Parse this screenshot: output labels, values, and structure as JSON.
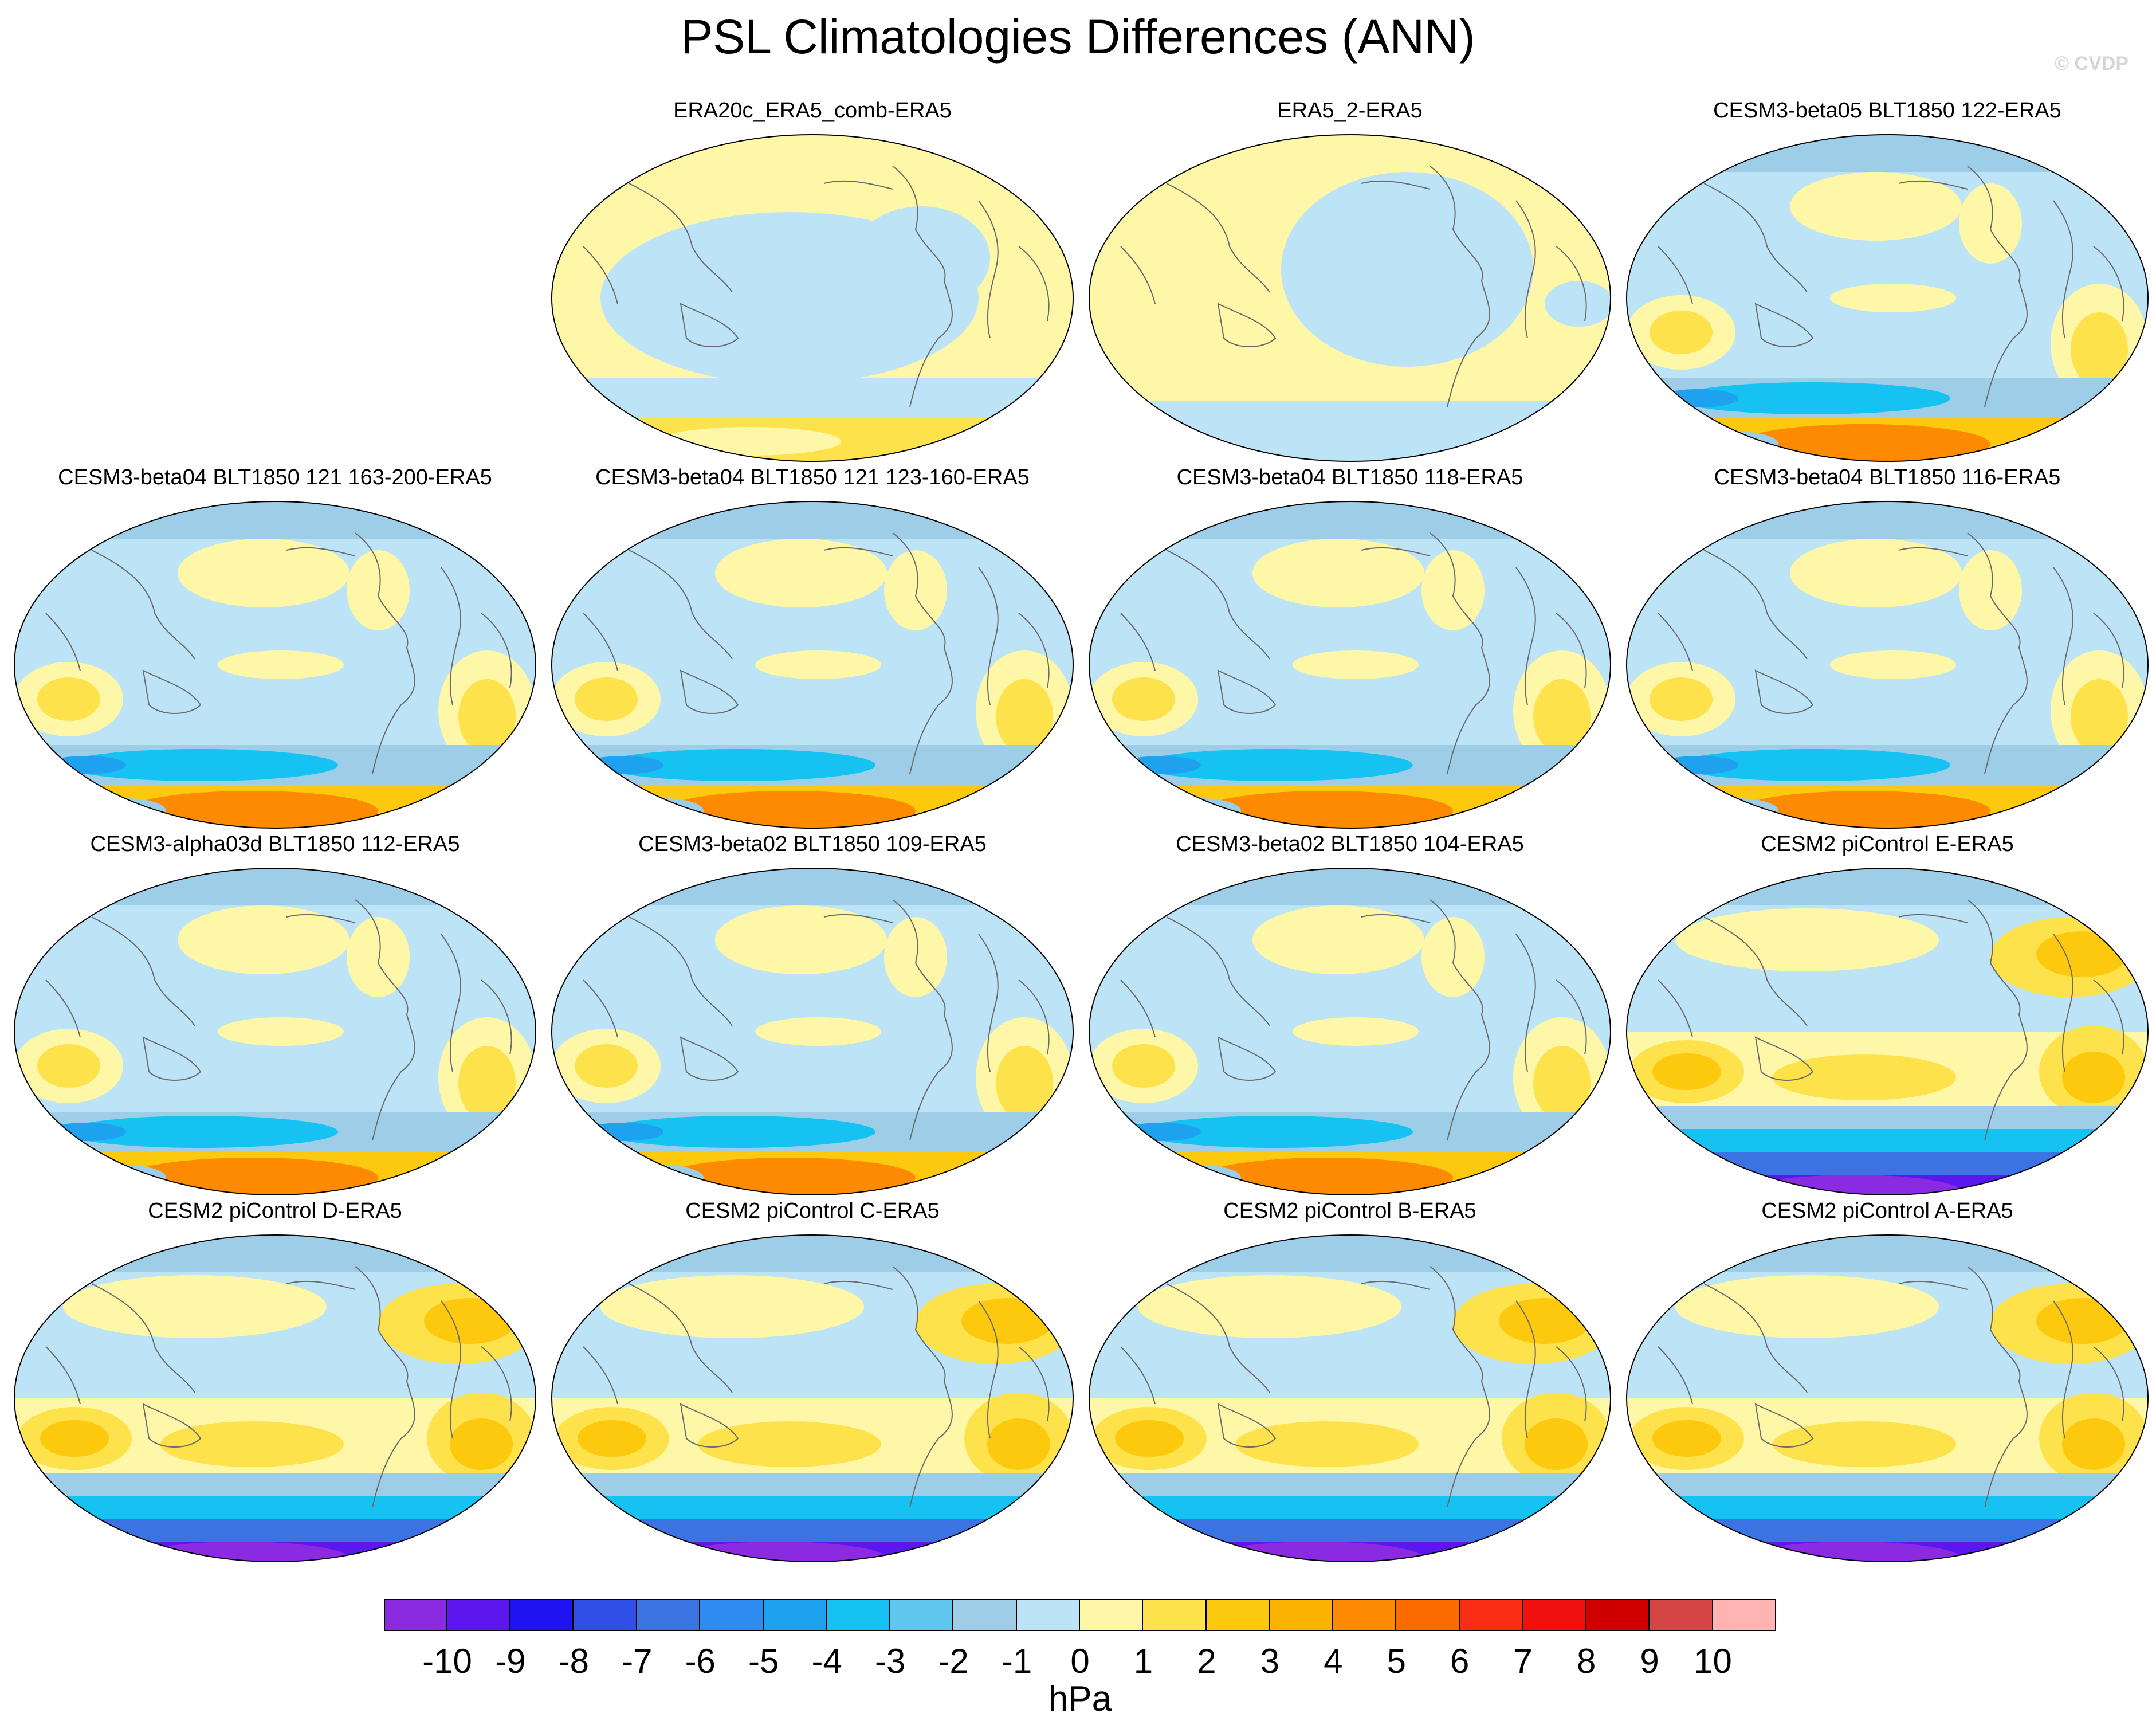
{
  "title": "PSL Climatologies Differences (ANN)",
  "watermark": "© CVDP",
  "units": "hPa",
  "colors": {
    "bins": [
      "#8a2be2",
      "#5c17ee",
      "#2013f2",
      "#2f4fe6",
      "#3b73e3",
      "#2e8cf0",
      "#1ea2f0",
      "#16c2f2",
      "#5fc6ee",
      "#9ecde8",
      "#bde3f6",
      "#fff7a8",
      "#fde24b",
      "#fcc90e",
      "#fbb200",
      "#fd8a00",
      "#fb6b00",
      "#f82d14",
      "#f01010",
      "#d00000",
      "#d54545",
      "#ffb4b4"
    ],
    "coast": "#6a6a6a"
  },
  "chart_data": {
    "type": "contour-map-panels",
    "title": "PSL Climatologies Differences (ANN)",
    "projection": "Robinson (Pacific-centered)",
    "colorbar": {
      "levels": [
        -10,
        -9,
        -8,
        -7,
        -6,
        -5,
        -4,
        -3,
        -2,
        -1,
        0,
        1,
        2,
        3,
        4,
        5,
        6,
        7,
        8,
        9,
        10
      ],
      "units": "hPa"
    },
    "panels": [
      {
        "title": "ERA20c_ERA5_comb-ERA5",
        "style": "era20c"
      },
      {
        "title": "ERA5_2-ERA5",
        "style": "era5"
      },
      {
        "title": "CESM3-beta05 BLT1850 122-ERA5",
        "style": "cesm3"
      },
      {
        "title": "CESM3-beta04 BLT1850 121 163-200-ERA5",
        "style": "cesm3"
      },
      {
        "title": "CESM3-beta04 BLT1850 121 123-160-ERA5",
        "style": "cesm3"
      },
      {
        "title": "CESM3-beta04 BLT1850 118-ERA5",
        "style": "cesm3"
      },
      {
        "title": "CESM3-beta04 BLT1850 116-ERA5",
        "style": "cesm3"
      },
      {
        "title": "CESM3-alpha03d BLT1850 112-ERA5",
        "style": "cesm3"
      },
      {
        "title": "CESM3-beta02 BLT1850 109-ERA5",
        "style": "cesm3"
      },
      {
        "title": "CESM3-beta02 BLT1850 104-ERA5",
        "style": "cesm3"
      },
      {
        "title": "CESM2 piControl E-ERA5",
        "style": "cesm2"
      },
      {
        "title": "CESM2 piControl D-ERA5",
        "style": "cesm2"
      },
      {
        "title": "CESM2 piControl C-ERA5",
        "style": "cesm2"
      },
      {
        "title": "CESM2 piControl B-ERA5",
        "style": "cesm2"
      },
      {
        "title": "CESM2 piControl A-ERA5",
        "style": "cesm2"
      }
    ]
  }
}
